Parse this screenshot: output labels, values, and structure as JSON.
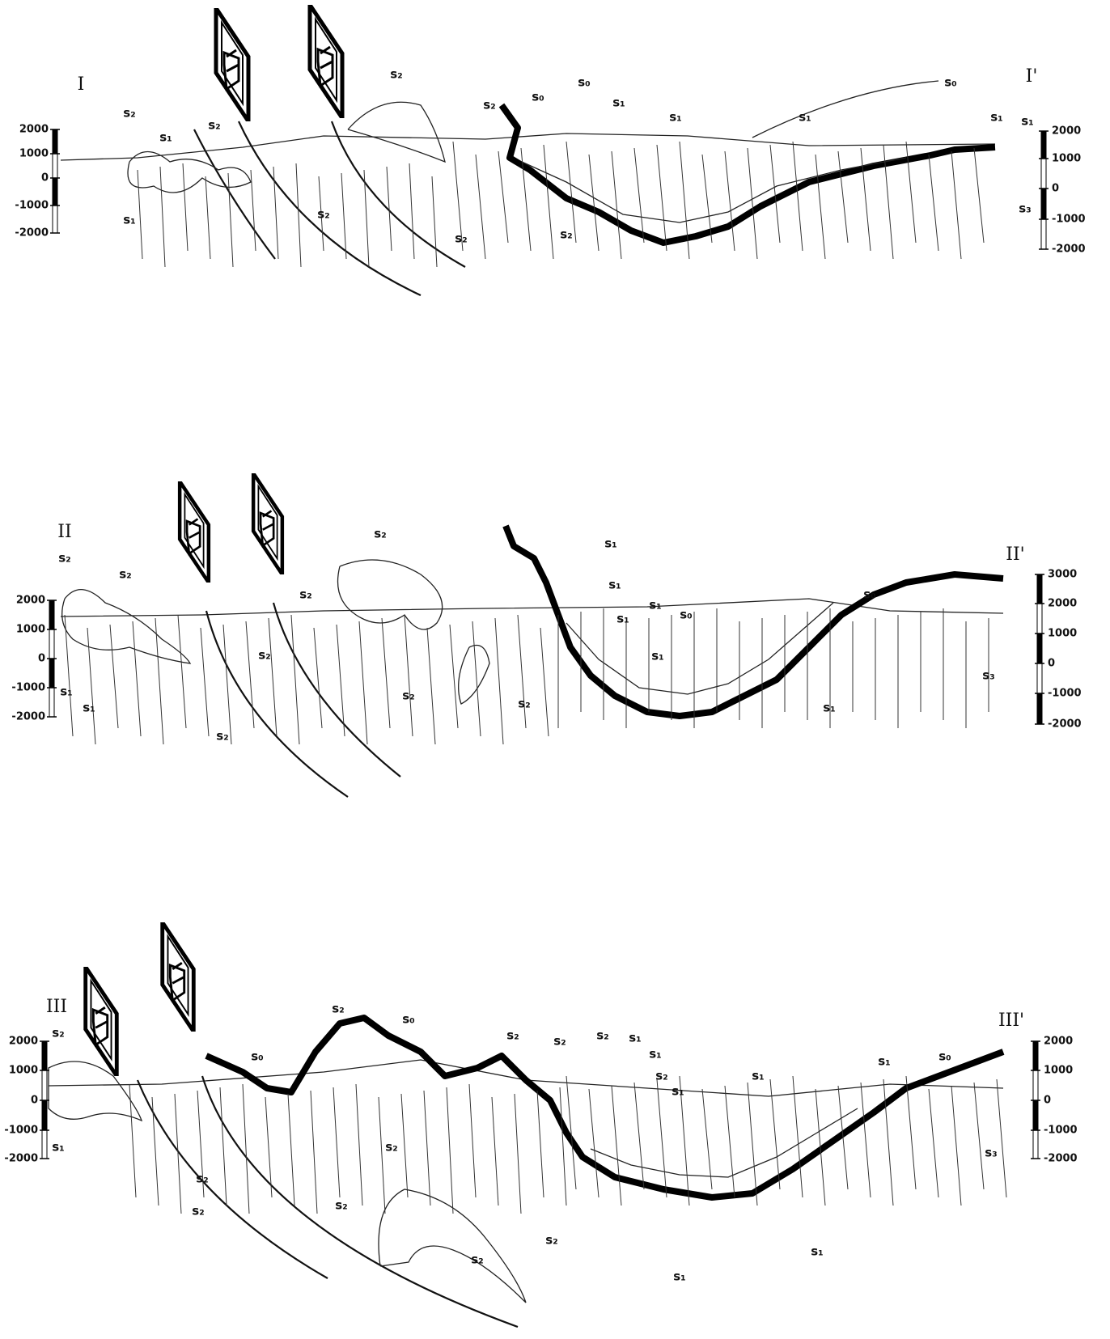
{
  "sections": [
    {
      "label_left": "I",
      "label_right": "I'",
      "left_scale": [
        "2000",
        "1000",
        "0",
        "-1000",
        "-2000"
      ],
      "right_scale": [
        "2000",
        "1000",
        "0",
        "-1000",
        "-2000"
      ],
      "annotations": [
        "s₂",
        "s₁",
        "s₂",
        "s₁",
        "s₂",
        "s₂",
        "s₂",
        "s₂",
        "s₀",
        "s₀",
        "s₁",
        "s₁",
        "s₁",
        "s₀",
        "s₁",
        "s₁",
        "s₂",
        "s₃"
      ]
    },
    {
      "label_left": "II",
      "label_right": "II'",
      "left_scale": [
        "2000",
        "1000",
        "0",
        "-1000",
        "-2000"
      ],
      "right_scale": [
        "3000",
        "2000",
        "1000",
        "0",
        "-1000",
        "-2000"
      ],
      "annotations": [
        "s₂",
        "s₂",
        "s₁",
        "s₁",
        "s₂",
        "s₂",
        "s₂",
        "s₂",
        "s₂",
        "s₂",
        "s₁",
        "s₁",
        "s₁",
        "s₁",
        "s₀",
        "s₁",
        "s₀",
        "s₁",
        "s₃"
      ]
    },
    {
      "label_left": "III",
      "label_right": "III'",
      "left_scale": [
        "2000",
        "1000",
        "0",
        "-1000",
        "-2000"
      ],
      "right_scale": [
        "2000",
        "1000",
        "0",
        "-1000",
        "-2000"
      ],
      "annotations": [
        "s₂",
        "s₁",
        "s₀",
        "s₂",
        "s₀",
        "s₂",
        "s₂",
        "s₂",
        "s₂",
        "s₂",
        "s₂",
        "s₂",
        "s₁",
        "s₁",
        "s₂",
        "s₁",
        "s₁",
        "s₁",
        "s₀",
        "s₂",
        "s₂",
        "s₁",
        "s₁",
        "s₃"
      ]
    }
  ]
}
